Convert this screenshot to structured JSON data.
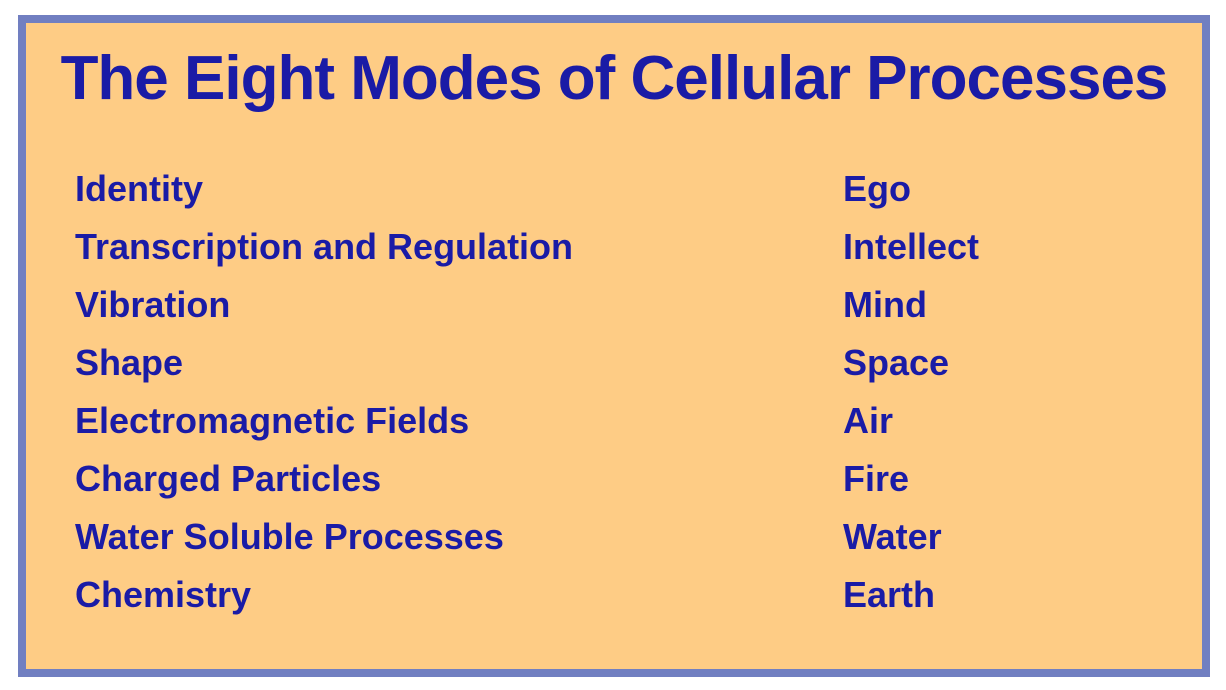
{
  "slide": {
    "title": "The Eight Modes of Cellular Processes",
    "rows": [
      {
        "mode": "Identity",
        "element": "Ego"
      },
      {
        "mode": "Transcription and Regulation",
        "element": "Intellect"
      },
      {
        "mode": "Vibration",
        "element": "Mind"
      },
      {
        "mode": "Shape",
        "element": "Space"
      },
      {
        "mode": "Electromagnetic Fields",
        "element": "Air"
      },
      {
        "mode": "Charged Particles",
        "element": "Fire"
      },
      {
        "mode": "Water Soluble Processes",
        "element": "Water"
      },
      {
        "mode": "Chemistry",
        "element": "Earth"
      }
    ],
    "colors": {
      "page_background": "#FFFFFF",
      "panel_background": "#FECC85",
      "panel_border": "#717FC1",
      "text": "#1A1BA6"
    }
  }
}
